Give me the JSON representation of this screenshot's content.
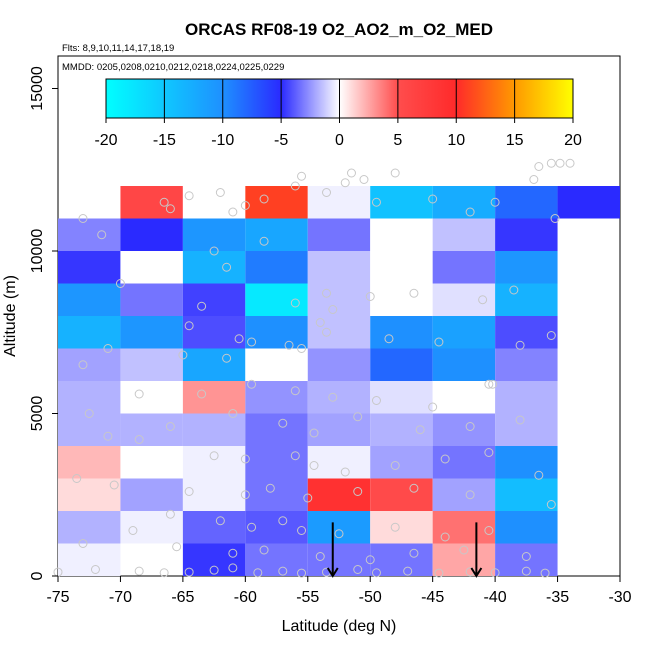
{
  "chart_data": {
    "type": "heatmap",
    "title": "ORCAS RF08-19 O2_AO2_m_O2_MED",
    "subtitle_flights": "Flts: 8,9,10,11,14,17,18,19",
    "subtitle_dates": "MMDD: 0205,0208,0210,0212,0218,0224,0225,0229",
    "xlabel": "Latitude (deg N)",
    "ylabel": "Altitude (m)",
    "xlim": [
      -75,
      -30
    ],
    "ylim": [
      0,
      16000
    ],
    "xticks": [
      -75,
      -70,
      -65,
      -60,
      -55,
      -50,
      -45,
      -40,
      -35,
      -30
    ],
    "xtick_labels": [
      "-75",
      "-70",
      "-65",
      "-60",
      "-55",
      "-50",
      "-45",
      "-40",
      "-35",
      "-30"
    ],
    "yticks": [
      0,
      5000,
      10000,
      15000
    ],
    "ytick_labels": [
      "0",
      "5000",
      "10000",
      "15000"
    ],
    "colorbar": {
      "range": [
        -20,
        20
      ],
      "ticks": [
        -20,
        -15,
        -10,
        -5,
        0,
        5,
        10,
        15,
        20
      ],
      "tick_labels": [
        "-20",
        "-15",
        "-10",
        "-5",
        "0",
        "5",
        "10",
        "15",
        "20"
      ]
    },
    "bin_width_deg": 5,
    "bin_height_m": 1000,
    "lat_bins": [
      -75,
      -70,
      -65,
      -60,
      -55,
      -50,
      -45,
      -40,
      -35
    ],
    "alt_bins": [
      0,
      1000,
      2000,
      3000,
      4000,
      5000,
      6000,
      7000,
      8000,
      9000,
      10000,
      11000
    ],
    "values": [
      [
        -0.5,
        null,
        -7,
        -4.5,
        -4.5,
        -4.5,
        2.5,
        -4.5,
        null
      ],
      [
        -2.5,
        -0.5,
        -5,
        -5.5,
        -11,
        1,
        4,
        -10,
        null
      ],
      [
        1,
        -3,
        -0.5,
        -4.5,
        9,
        5.5,
        -3,
        -14,
        null
      ],
      [
        2,
        0,
        -0.5,
        -4.5,
        -0.5,
        -3,
        -4.5,
        -10,
        null
      ],
      [
        -2.5,
        -2.5,
        -2.5,
        -4.5,
        -3,
        -2.5,
        -3.5,
        -2.5,
        null
      ],
      [
        -2.5,
        0,
        3,
        -3.5,
        -2.5,
        -1,
        0,
        -2.5,
        null
      ],
      [
        -3,
        -2,
        -12,
        0,
        -3.5,
        -9,
        -10,
        -4,
        null
      ],
      [
        -13,
        -10.5,
        -6,
        -10,
        -2,
        -10,
        -11.5,
        -6,
        null
      ],
      [
        -10.5,
        -4.5,
        -6.5,
        -18,
        -2,
        0,
        -1,
        -13,
        null
      ],
      [
        -7,
        0,
        -13,
        -9.5,
        -2,
        0,
        -4.5,
        -10.5,
        null
      ],
      [
        -4,
        -7.5,
        -10.5,
        -12,
        -4.5,
        0,
        -2,
        -7,
        null
      ],
      [
        null,
        6,
        0,
        11,
        -0.5,
        -14.5,
        -12.5,
        -9,
        -7.5
      ]
    ],
    "arrows": [
      {
        "lat": -53,
        "alt_top": 1650,
        "alt_bottom": 0
      },
      {
        "lat": -41.5,
        "alt_top": 1650,
        "alt_bottom": 0
      }
    ],
    "points": [
      [
        -73,
        11000
      ],
      [
        -71.5,
        10500
      ],
      [
        -70,
        9000
      ],
      [
        -66.5,
        11500
      ],
      [
        -66,
        11300
      ],
      [
        -64.5,
        11700
      ],
      [
        -62,
        11800
      ],
      [
        -61,
        11200
      ],
      [
        -60,
        11400
      ],
      [
        -58.5,
        11600
      ],
      [
        -56,
        12000
      ],
      [
        -55.5,
        12300
      ],
      [
        -53.5,
        11800
      ],
      [
        -52,
        12100
      ],
      [
        -51.5,
        12400
      ],
      [
        -50.5,
        12200
      ],
      [
        -49.5,
        11500
      ],
      [
        -48,
        12400
      ],
      [
        -45,
        11600
      ],
      [
        -42,
        11200
      ],
      [
        -40,
        11500
      ],
      [
        -36.5,
        12600
      ],
      [
        -35.5,
        12700
      ],
      [
        -34.8,
        12700
      ],
      [
        -34,
        12700
      ],
      [
        -36.9,
        12200
      ],
      [
        -35.2,
        11000
      ],
      [
        -61.5,
        9500
      ],
      [
        -62.5,
        10000
      ],
      [
        -58.5,
        10300
      ],
      [
        -56,
        8400
      ],
      [
        -53.5,
        8700
      ],
      [
        -53,
        8200
      ],
      [
        -54,
        7800
      ],
      [
        -50,
        8600
      ],
      [
        -46.5,
        8700
      ],
      [
        -41,
        8500
      ],
      [
        -38.5,
        8800
      ],
      [
        -63.5,
        8300
      ],
      [
        -64.5,
        7700
      ],
      [
        -60.5,
        7300
      ],
      [
        -59.5,
        7200
      ],
      [
        -56.5,
        7100
      ],
      [
        -55.5,
        7000
      ],
      [
        -53.5,
        7500
      ],
      [
        -48.5,
        7300
      ],
      [
        -44.5,
        7200
      ],
      [
        -38,
        7100
      ],
      [
        -35.5,
        7400
      ],
      [
        -65,
        6800
      ],
      [
        -61.5,
        6700
      ],
      [
        -71,
        7000
      ],
      [
        -73,
        6500
      ],
      [
        -63.5,
        5600
      ],
      [
        -59.5,
        5900
      ],
      [
        -56,
        5700
      ],
      [
        -53,
        5500
      ],
      [
        -49.5,
        5400
      ],
      [
        -45,
        5200
      ],
      [
        -40.5,
        5900
      ],
      [
        -40.2,
        5900
      ],
      [
        -68.5,
        5600
      ],
      [
        -72.5,
        5000
      ],
      [
        -61,
        5000
      ],
      [
        -57,
        4700
      ],
      [
        -54.5,
        4400
      ],
      [
        -51,
        4900
      ],
      [
        -46,
        4500
      ],
      [
        -42,
        4600
      ],
      [
        -38,
        4800
      ],
      [
        -66,
        4600
      ],
      [
        -71,
        4300
      ],
      [
        -68.5,
        4200
      ],
      [
        -62.5,
        3700
      ],
      [
        -60,
        3600
      ],
      [
        -56,
        3700
      ],
      [
        -54.5,
        3400
      ],
      [
        -52,
        3200
      ],
      [
        -48,
        3400
      ],
      [
        -44,
        3600
      ],
      [
        -40.5,
        3800
      ],
      [
        -36.5,
        3100
      ],
      [
        -73.5,
        3000
      ],
      [
        -70.5,
        2800
      ],
      [
        -64.5,
        2600
      ],
      [
        -60,
        2500
      ],
      [
        -58,
        2700
      ],
      [
        -55,
        2400
      ],
      [
        -51,
        2600
      ],
      [
        -46.5,
        2700
      ],
      [
        -42,
        2500
      ],
      [
        -35.5,
        2200
      ],
      [
        -66,
        1900
      ],
      [
        -62,
        1700
      ],
      [
        -59.5,
        1500
      ],
      [
        -57,
        1700
      ],
      [
        -55.5,
        1400
      ],
      [
        -52.5,
        1300
      ],
      [
        -48,
        1500
      ],
      [
        -44,
        1200
      ],
      [
        -40.5,
        1400
      ],
      [
        -69,
        1400
      ],
      [
        -73,
        1000
      ],
      [
        -65.5,
        900
      ],
      [
        -61,
        700
      ],
      [
        -58.5,
        800
      ],
      [
        -54,
        600
      ],
      [
        -50,
        500
      ],
      [
        -46.5,
        700
      ],
      [
        -42.5,
        800
      ],
      [
        -37.5,
        600
      ],
      [
        -72,
        200
      ],
      [
        -68.5,
        150
      ],
      [
        -66.5,
        100
      ],
      [
        -64.5,
        120
      ],
      [
        -62.5,
        180
      ],
      [
        -61,
        250
      ],
      [
        -59,
        100
      ],
      [
        -57,
        150
      ],
      [
        -55.5,
        90
      ],
      [
        -53.5,
        120
      ],
      [
        -51,
        200
      ],
      [
        -49.5,
        100
      ],
      [
        -47,
        150
      ],
      [
        -44.5,
        90
      ],
      [
        -42,
        130
      ],
      [
        -40,
        100
      ],
      [
        -37.5,
        150
      ],
      [
        -36,
        90
      ],
      [
        -75,
        120
      ]
    ]
  }
}
